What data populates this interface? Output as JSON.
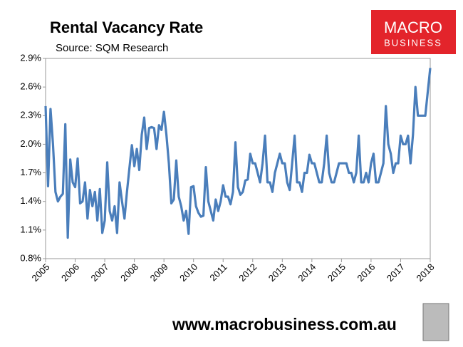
{
  "chart_data": {
    "type": "line",
    "title": "Rental Vacancy Rate",
    "subtitle": "Source: SQM Research",
    "logo": [
      "MACRO",
      "BUSINESS"
    ],
    "footer": "www.macrobusiness.com.au",
    "color": "#4a7ebb",
    "grid": false,
    "ylim": [
      0.8,
      2.9
    ],
    "yticks": [
      {
        "value": 0.8,
        "label": "0.8%"
      },
      {
        "value": 1.1,
        "label": "1.1%"
      },
      {
        "value": 1.4,
        "label": "1.4%"
      },
      {
        "value": 1.7,
        "label": "1.7%"
      },
      {
        "value": 2.0,
        "label": "2.0%"
      },
      {
        "value": 2.3,
        "label": "2.3%"
      },
      {
        "value": 2.6,
        "label": "2.6%"
      },
      {
        "value": 2.9,
        "label": "2.9%"
      }
    ],
    "categories": [
      "2005",
      null,
      null,
      null,
      null,
      null,
      null,
      null,
      null,
      null,
      null,
      null,
      "2006",
      null,
      null,
      null,
      null,
      null,
      null,
      null,
      null,
      null,
      null,
      null,
      "2007",
      null,
      null,
      null,
      null,
      null,
      null,
      null,
      null,
      null,
      null,
      null,
      "2008",
      null,
      null,
      null,
      null,
      null,
      null,
      null,
      null,
      null,
      null,
      null,
      "2009",
      null,
      null,
      null,
      null,
      null,
      null,
      null,
      null,
      null,
      null,
      null,
      "2010",
      null,
      null,
      null,
      null,
      null,
      null,
      null,
      null,
      null,
      null,
      null,
      "2011",
      null,
      null,
      null,
      null,
      null,
      null,
      null,
      null,
      null,
      null,
      null,
      "2012",
      null,
      null,
      null,
      null,
      null,
      null,
      null,
      null,
      null,
      null,
      null,
      "2013",
      null,
      null,
      null,
      null,
      null,
      null,
      null,
      null,
      null,
      null,
      null,
      "2014",
      null,
      null,
      null,
      null,
      null,
      null,
      null,
      null,
      null,
      null,
      null,
      "2015",
      null,
      null,
      null,
      null,
      null,
      null,
      null,
      null,
      null,
      null,
      null,
      "2016",
      null,
      null,
      null,
      null,
      null,
      null,
      null,
      null,
      null,
      null,
      null,
      "2017",
      null,
      null,
      null,
      null,
      null,
      null,
      null,
      null,
      null,
      null,
      null,
      "2018"
    ],
    "values": [
      2.4,
      1.56,
      2.37,
      2.0,
      1.5,
      1.4,
      1.45,
      1.48,
      2.21,
      1.02,
      1.84,
      1.6,
      1.55,
      1.85,
      1.38,
      1.4,
      1.6,
      1.22,
      1.52,
      1.35,
      1.5,
      1.2,
      1.53,
      1.07,
      1.2,
      1.81,
      1.3,
      1.2,
      1.35,
      1.07,
      1.6,
      1.4,
      1.22,
      1.5,
      1.75,
      1.99,
      1.77,
      1.95,
      1.73,
      2.1,
      2.28,
      1.95,
      2.17,
      2.18,
      2.17,
      1.95,
      2.2,
      2.15,
      2.34,
      2.1,
      1.8,
      1.38,
      1.42,
      1.83,
      1.45,
      1.35,
      1.2,
      1.3,
      1.06,
      1.55,
      1.56,
      1.35,
      1.28,
      1.24,
      1.25,
      1.76,
      1.4,
      1.3,
      1.2,
      1.42,
      1.3,
      1.4,
      1.57,
      1.45,
      1.45,
      1.37,
      1.5,
      2.02,
      1.55,
      1.47,
      1.5,
      1.62,
      1.63,
      1.9,
      1.8,
      1.8,
      1.7,
      1.6,
      1.8,
      2.09,
      1.6,
      1.6,
      1.5,
      1.7,
      1.8,
      1.9,
      1.8,
      1.8,
      1.6,
      1.52,
      1.8,
      2.09,
      1.6,
      1.6,
      1.5,
      1.7,
      1.7,
      1.89,
      1.8,
      1.8,
      1.7,
      1.6,
      1.6,
      1.8,
      2.09,
      1.7,
      1.6,
      1.6,
      1.7,
      1.8,
      1.8,
      1.8,
      1.8,
      1.7,
      1.7,
      1.6,
      1.7,
      2.09,
      1.6,
      1.6,
      1.7,
      1.6,
      1.8,
      1.9,
      1.6,
      1.6,
      1.7,
      1.8,
      2.4,
      2.0,
      1.9,
      1.7,
      1.8,
      1.8,
      2.09,
      2.0,
      2.0,
      2.09,
      1.8,
      2.1,
      2.6,
      2.3,
      2.3,
      2.3,
      2.3,
      2.55,
      2.8
    ]
  }
}
